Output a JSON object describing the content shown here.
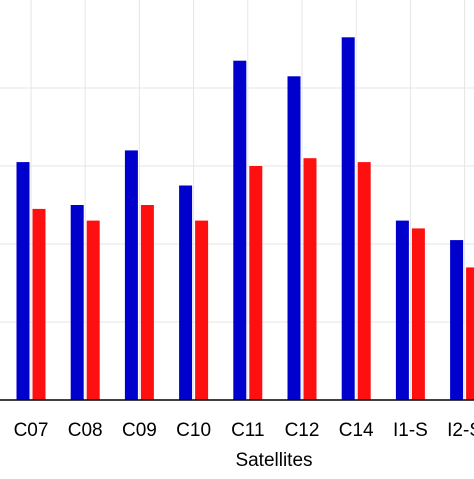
{
  "chart_data": {
    "type": "bar",
    "title": "",
    "xlabel": "Satellites",
    "ylabel": "",
    "ylim": [
      0,
      100
    ],
    "grid": true,
    "categories": [
      "C07",
      "C08",
      "C09",
      "C10",
      "C11",
      "C12",
      "C14",
      "I1-S",
      "I2-S"
    ],
    "series": [
      {
        "color": "#0000cc",
        "values": [
          61,
          50,
          64,
          55,
          87,
          83,
          93,
          46,
          41
        ]
      },
      {
        "color": "#ff1010",
        "values": [
          49,
          46,
          50,
          46,
          60,
          62,
          61,
          44,
          34
        ]
      }
    ]
  }
}
